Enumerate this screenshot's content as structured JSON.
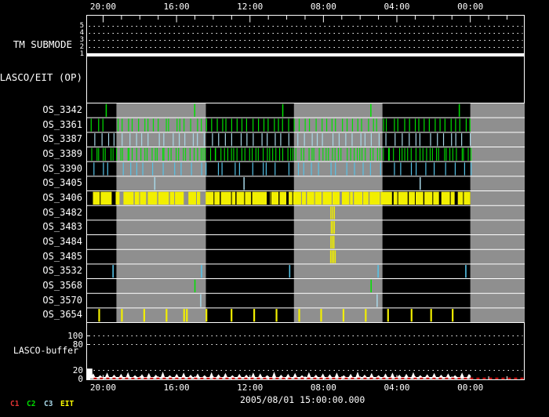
{
  "chart_data": {
    "type": "timeline",
    "datetime": "2005/08/01 15:00:00.000",
    "x_axis": {
      "direction": "time-decreasing-left-to-right",
      "major_labels": [
        "20:00",
        "16:00",
        "12:00",
        "08:00",
        "04:00",
        "00:00"
      ],
      "major_positions": [
        0.0376,
        0.2054,
        0.3732,
        0.541,
        0.7088,
        0.8766
      ],
      "minor_step": 0.04195,
      "minor_count": 23,
      "first_minor": 0.0376
    },
    "gray_bands": [
      [
        0.068,
        0.2715
      ],
      [
        0.4736,
        0.675
      ],
      [
        0.8766,
        1.0
      ]
    ],
    "tm_submode": {
      "label": "TM SUBMODE",
      "scale_labels": [
        "5",
        "4",
        "3",
        "2",
        "1"
      ],
      "value": 1
    },
    "lasco_eit": {
      "label": "LASCO/EIT (OP)",
      "events": []
    },
    "rows": [
      {
        "label": "OS_3342",
        "color": "green",
        "w": 1.5,
        "ticks": {
          "positions": [
            0.0447,
            0.2469,
            0.4481,
            0.6494,
            0.8515
          ]
        }
      },
      {
        "label": "OS_3361",
        "color": "green",
        "w": 1.2,
        "ticks": {
          "uniform": {
            "from": 0.013,
            "to": 0.878,
            "count": 74,
            "jitter": 0.004,
            "seed": 7
          },
          "gaps": [
            [
              0.044,
              0.069
            ]
          ]
        }
      },
      {
        "label": "OS_3387",
        "color": "light_blue",
        "w": 1.2,
        "ticks": {
          "uniform": {
            "from": 0.018,
            "to": 0.877,
            "count": 55,
            "jitter": 0.005,
            "seed": 3
          }
        }
      },
      {
        "label": "OS_3389",
        "color": "green",
        "w": 1.1,
        "ticks": {
          "uniform": {
            "from": 0.012,
            "to": 0.878,
            "count": 110,
            "jitter": 0.004,
            "seed": 5
          }
        }
      },
      {
        "label": "OS_3390",
        "color": "cyan",
        "w": 1.2,
        "ticks": {
          "uniform": {
            "from": 0.016,
            "to": 0.876,
            "count": 44,
            "jitter": 0.008,
            "seed": 9
          }
        }
      },
      {
        "label": "OS_3405",
        "color": "light_blue",
        "w": 1.5,
        "ticks": {
          "positions": [
            0.1556,
            0.3596,
            0.7621
          ]
        }
      },
      {
        "label": "OS_3406",
        "color": "yellow",
        "w": 1,
        "barcode": {
          "from": 0.0143,
          "to": 0.8766,
          "gaps": [
            [
              0.03,
              0.0018
            ],
            [
              0.0572,
              0.009
            ],
            [
              0.0751,
              0.009
            ],
            [
              0.1073,
              0.0025
            ],
            [
              0.12,
              0.0018
            ],
            [
              0.136,
              0.0036
            ],
            [
              0.161,
              0.0025
            ],
            [
              0.1878,
              0.0025
            ],
            [
              0.2,
              0.0018
            ],
            [
              0.2218,
              0.0107
            ],
            [
              0.25,
              0.0018
            ],
            [
              0.2594,
              0.0125
            ],
            [
              0.29,
              0.0018
            ],
            [
              0.3041,
              0.0025
            ],
            [
              0.33,
              0.0018
            ],
            [
              0.3399,
              0.0025
            ],
            [
              0.36,
              0.0018
            ],
            [
              0.3757,
              0.0025
            ],
            [
              0.4115,
              0.0072
            ],
            [
              0.42,
              0.0018
            ],
            [
              0.4383,
              0.0025
            ],
            [
              0.4562,
              0.0054
            ],
            [
              0.47,
              0.0018
            ],
            [
              0.49,
              0.0018
            ],
            [
              0.5009,
              0.0025
            ],
            [
              0.52,
              0.0018
            ],
            [
              0.5367,
              0.0025
            ],
            [
              0.56,
              0.0018
            ],
            [
              0.5778,
              0.0054
            ],
            [
              0.6,
              0.0018
            ],
            [
              0.6082,
              0.0025
            ],
            [
              0.63,
              0.0018
            ],
            [
              0.644,
              0.0025
            ],
            [
              0.67,
              0.0018
            ],
            [
              0.6977,
              0.0036
            ],
            [
              0.71,
              0.0018
            ],
            [
              0.7335,
              0.0025
            ],
            [
              0.75,
              0.0018
            ],
            [
              0.7692,
              0.0025
            ],
            [
              0.79,
              0.0018
            ],
            [
              0.805,
              0.0054
            ],
            [
              0.83,
              0.0018
            ],
            [
              0.8408,
              0.0072
            ],
            [
              0.86,
              0.0018
            ]
          ]
        }
      },
      {
        "label": "OS_3482",
        "color": "yellow",
        "w": 1.4,
        "ticks": {
          "positions": [
            0.558,
            0.562,
            0.566
          ]
        }
      },
      {
        "label": "OS_3483",
        "color": "yellow",
        "w": 1.4,
        "ticks": {
          "positions": [
            0.559,
            0.5625,
            0.566
          ]
        }
      },
      {
        "label": "OS_3484",
        "color": "yellow",
        "w": 1.4,
        "ticks": {
          "positions": [
            0.558,
            0.5615,
            0.565
          ]
        }
      },
      {
        "label": "OS_3485",
        "color": "yellow",
        "w": 1.4,
        "ticks": {
          "positions": [
            0.5575,
            0.561,
            0.5645,
            0.568
          ]
        }
      },
      {
        "label": "OS_3532",
        "color": "cyan",
        "w": 1.6,
        "ticks": {
          "positions": [
            0.0603,
            0.2624,
            0.4639,
            0.666,
            0.8664
          ]
        }
      },
      {
        "label": "OS_3568",
        "color": "green",
        "w": 1.5,
        "ticks": {
          "positions": [
            0.2474,
            0.65
          ]
        }
      },
      {
        "label": "OS_3570",
        "color": "light_blue",
        "w": 1.5,
        "ticks": {
          "positions": [
            0.2606,
            0.6637
          ]
        }
      },
      {
        "label": "OS_3654",
        "color": "yellow",
        "w": 2.2,
        "ticks": {
          "positions": [
            0.0286,
            0.0805,
            0.1315,
            0.1825,
            0.2227,
            0.229,
            0.2737,
            0.331,
            0.3828,
            0.4338,
            0.4857,
            0.5358,
            0.5868,
            0.6377,
            0.6887,
            0.7424,
            0.7871,
            0.8363
          ]
        }
      }
    ],
    "buffer": {
      "label": "LASCO-buffer",
      "y_tick_labels": [
        "100",
        "80",
        "20",
        "0"
      ],
      "y_tick_values": [
        100,
        80,
        20,
        0
      ],
      "grid_values": [
        100,
        80,
        20
      ],
      "y_max": 125,
      "initial_level": 24,
      "spike_start": 0.015,
      "spike_step": 0.0159,
      "spike_baseline": 4,
      "spike_heights": [
        13,
        9,
        15,
        10,
        12,
        16,
        9,
        11,
        14,
        10,
        17,
        9,
        12,
        15,
        10,
        13,
        9,
        16,
        11,
        14,
        9,
        12,
        10,
        15,
        13,
        9,
        17,
        10,
        12,
        14,
        9,
        16,
        10,
        13,
        11,
        15,
        9,
        12,
        17,
        10,
        14,
        9,
        13,
        15,
        10,
        12,
        16,
        9,
        11,
        14,
        10,
        13,
        9,
        15,
        12
      ],
      "data_end": 0.875,
      "red_line": {
        "value": 2,
        "from": 0.016,
        "to": 1.0,
        "dash": true
      }
    },
    "legend": [
      {
        "label": "C1",
        "color": "#e03333"
      },
      {
        "label": "C2",
        "color": "#00dd00"
      },
      {
        "label": "C3",
        "color": "#a8d8e8"
      },
      {
        "label": "EIT",
        "color": "#ffff00"
      }
    ]
  },
  "colors": {
    "background": "#000000",
    "frame": "#ffffff",
    "band": "#8f8f8f",
    "green": "#00e100",
    "light_blue": "#a8d8e8",
    "cyan": "#55c3e8",
    "yellow": "#f2ef00",
    "red": "#e01212"
  }
}
